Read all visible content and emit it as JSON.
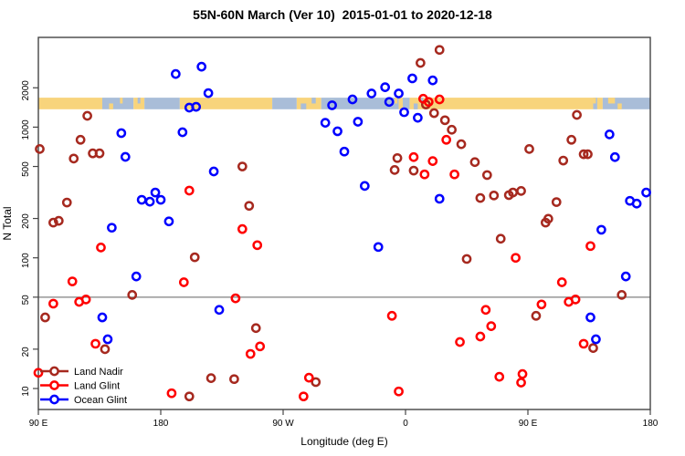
{
  "title": "55N-60N March (Ver 10)  2015-01-01 to 2020-12-18",
  "frame_color": "#454545",
  "chart_data": {
    "type": "scatter",
    "title": "55N-60N March (Ver 10)  2015-01-01 to 2020-12-18",
    "xlabel": "Longitude (deg E)",
    "ylabel": "N Total",
    "x_axis": {
      "range_deg": [
        90,
        540
      ],
      "ticks": [
        90,
        180,
        270,
        360,
        450,
        540
      ],
      "tick_labels": [
        "90 E",
        "180",
        "90 W",
        "0",
        "90 E",
        "180"
      ]
    },
    "y_axis": {
      "scale": "log10",
      "range": [
        7,
        4900
      ],
      "ticks": [
        10,
        20,
        50,
        100,
        200,
        500,
        1000,
        2000
      ],
      "tick_labels": [
        "10",
        "20",
        "50",
        "100",
        "200",
        "500",
        "1000",
        "2000"
      ]
    },
    "reference_line": {
      "y": 50,
      "color": "#808080"
    },
    "map_band": {
      "description": "land-ocean strip for 55N-60N latitude",
      "value_top": 1680,
      "value_bottom": 1370,
      "land_color": "#F8D47C",
      "ocean_color": "#A9BDD8",
      "segments": [
        [
          90,
          137,
          "land"
        ],
        [
          137,
          160,
          "ocean"
        ],
        [
          160,
          168,
          "land"
        ],
        [
          168,
          194,
          "ocean"
        ],
        [
          194,
          262,
          "land"
        ],
        [
          262,
          280,
          "ocean"
        ],
        [
          280,
          298,
          "land"
        ],
        [
          298,
          355,
          "ocean"
        ],
        [
          355,
          358,
          "land"
        ],
        [
          358,
          363,
          "ocean"
        ],
        [
          363,
          498,
          "land"
        ],
        [
          498,
          501,
          "ocean"
        ],
        [
          501,
          505,
          "land"
        ],
        [
          505,
          540,
          "ocean"
        ]
      ],
      "speckles": [
        {
          "lon": 142,
          "w": 3,
          "type": "land",
          "pos": "bottom"
        },
        {
          "lon": 150,
          "w": 2,
          "type": "land",
          "pos": "top"
        },
        {
          "lon": 163,
          "w": 2,
          "type": "ocean",
          "pos": "top"
        },
        {
          "lon": 283,
          "w": 4,
          "type": "ocean",
          "pos": "bottom"
        },
        {
          "lon": 291,
          "w": 3,
          "type": "ocean",
          "pos": "top"
        },
        {
          "lon": 352,
          "w": 2,
          "type": "land",
          "pos": "top"
        },
        {
          "lon": 366,
          "w": 3,
          "type": "ocean",
          "pos": "bottom"
        },
        {
          "lon": 371,
          "w": 2,
          "type": "ocean",
          "pos": "top"
        },
        {
          "lon": 498,
          "w": 2,
          "type": "land",
          "pos": "top"
        },
        {
          "lon": 509,
          "w": 5,
          "type": "land",
          "pos": "top"
        },
        {
          "lon": 516,
          "w": 3,
          "type": "land",
          "pos": "bottom"
        }
      ]
    },
    "series": [
      {
        "name": "Land Nadir",
        "color": "#A6291F",
        "points": [
          [
            126,
            1220
          ],
          [
            121,
            800
          ],
          [
            91,
            680
          ],
          [
            130,
            630
          ],
          [
            135,
            630
          ],
          [
            116,
            575
          ],
          [
            240,
            500
          ],
          [
            111,
            265
          ],
          [
            101,
            186
          ],
          [
            105,
            192
          ],
          [
            245,
            250
          ],
          [
            205,
            101
          ],
          [
            159,
            52
          ],
          [
            95,
            35
          ],
          [
            139,
            20
          ],
          [
            217,
            12
          ],
          [
            234,
            11.8
          ],
          [
            201,
            8.7
          ],
          [
            371,
            3100
          ],
          [
            385,
            3900
          ],
          [
            375,
            1490
          ],
          [
            381,
            1280
          ],
          [
            389,
            1130
          ],
          [
            394,
            955
          ],
          [
            354,
            580
          ],
          [
            352,
            470
          ],
          [
            366,
            465
          ],
          [
            250,
            29
          ],
          [
            294,
            11.2
          ],
          [
            486,
            1240
          ],
          [
            401,
            740
          ],
          [
            451,
            680
          ],
          [
            482,
            800
          ],
          [
            491,
            620
          ],
          [
            494,
            620
          ],
          [
            476,
            555
          ],
          [
            411,
            540
          ],
          [
            420,
            430
          ],
          [
            415,
            287
          ],
          [
            425,
            300
          ],
          [
            436,
            302
          ],
          [
            439,
            316
          ],
          [
            445,
            325
          ],
          [
            471,
            267
          ],
          [
            463,
            186
          ],
          [
            465,
            199
          ],
          [
            430,
            140
          ],
          [
            405,
            98
          ],
          [
            519,
            52
          ],
          [
            456,
            36
          ],
          [
            498,
            20.4
          ]
        ]
      },
      {
        "name": "Land Glint",
        "color": "#FF0000",
        "points": [
          [
            201,
            327
          ],
          [
            136,
            120
          ],
          [
            115,
            66
          ],
          [
            197,
            65
          ],
          [
            101,
            44.6
          ],
          [
            120,
            46
          ],
          [
            125,
            48
          ],
          [
            240,
            166
          ],
          [
            235,
            49
          ],
          [
            132,
            22
          ],
          [
            90,
            13.2
          ],
          [
            188,
            9.2
          ],
          [
            373,
            1650
          ],
          [
            377,
            1560
          ],
          [
            385,
            1630
          ],
          [
            390,
            800
          ],
          [
            366,
            590
          ],
          [
            380,
            550
          ],
          [
            374,
            435
          ],
          [
            396,
            435
          ],
          [
            251,
            125
          ],
          [
            350,
            36
          ],
          [
            253,
            21
          ],
          [
            246,
            18.4
          ],
          [
            289,
            12.1
          ],
          [
            285,
            8.7
          ],
          [
            355,
            9.5
          ],
          [
            496,
            123
          ],
          [
            441,
            100
          ],
          [
            475,
            65
          ],
          [
            460,
            44
          ],
          [
            480,
            46
          ],
          [
            485,
            48
          ],
          [
            419,
            40
          ],
          [
            423,
            30
          ],
          [
            415,
            25
          ],
          [
            400,
            22.7
          ],
          [
            491,
            22
          ],
          [
            429,
            12.3
          ],
          [
            446,
            12.9
          ],
          [
            445,
            11.1
          ]
        ]
      },
      {
        "name": "Ocean Glint",
        "color": "#0000FF",
        "points": [
          [
            191,
            2550
          ],
          [
            210,
            2900
          ],
          [
            215,
            1820
          ],
          [
            201,
            1410
          ],
          [
            206,
            1430
          ],
          [
            151,
            900
          ],
          [
            196,
            914
          ],
          [
            154,
            592
          ],
          [
            219,
            458
          ],
          [
            166,
            278
          ],
          [
            172,
            269
          ],
          [
            176,
            316
          ],
          [
            180,
            278
          ],
          [
            186,
            190
          ],
          [
            144,
            170
          ],
          [
            162,
            72
          ],
          [
            223,
            40
          ],
          [
            137,
            35
          ],
          [
            141,
            23.8
          ],
          [
            365,
            2360
          ],
          [
            380,
            2280
          ],
          [
            345,
            2020
          ],
          [
            335,
            1810
          ],
          [
            355,
            1810
          ],
          [
            306,
            1470
          ],
          [
            321,
            1630
          ],
          [
            348,
            1560
          ],
          [
            359,
            1300
          ],
          [
            369,
            1180
          ],
          [
            301,
            1080
          ],
          [
            310,
            930
          ],
          [
            325,
            1100
          ],
          [
            315,
            650
          ],
          [
            330,
            355
          ],
          [
            385,
            283
          ],
          [
            340,
            121
          ],
          [
            510,
            880
          ],
          [
            514,
            590
          ],
          [
            525,
            273
          ],
          [
            530,
            260
          ],
          [
            537,
            316
          ],
          [
            504,
            164
          ],
          [
            522,
            72
          ],
          [
            496,
            35
          ],
          [
            500,
            23.8
          ]
        ]
      }
    ],
    "legend": {
      "position": "bottom-left",
      "entries": [
        {
          "label": "Land Nadir",
          "color": "#A6291F"
        },
        {
          "label": "Land Glint",
          "color": "#FF0000"
        },
        {
          "label": "Ocean Glint",
          "color": "#0000FF"
        }
      ]
    }
  }
}
